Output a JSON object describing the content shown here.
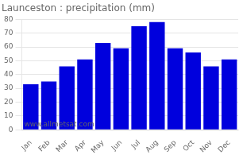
{
  "chart_data": {
    "type": "bar",
    "title": "Launceston : precipitation (mm)",
    "categories": [
      "Jan",
      "Feb",
      "Mar",
      "Apr",
      "May",
      "Jun",
      "Jul",
      "Aug",
      "Sep",
      "Oct",
      "Nov",
      "Dec"
    ],
    "values": [
      33,
      35,
      46,
      51,
      63,
      59,
      75,
      78,
      59,
      56,
      46,
      51
    ],
    "color": "#0000dd",
    "ylim": [
      0,
      80
    ],
    "yticks": [
      0,
      10,
      20,
      30,
      40,
      50,
      60,
      70,
      80
    ],
    "grid": true,
    "annotations": [
      "www.allmetsat.com"
    ]
  }
}
